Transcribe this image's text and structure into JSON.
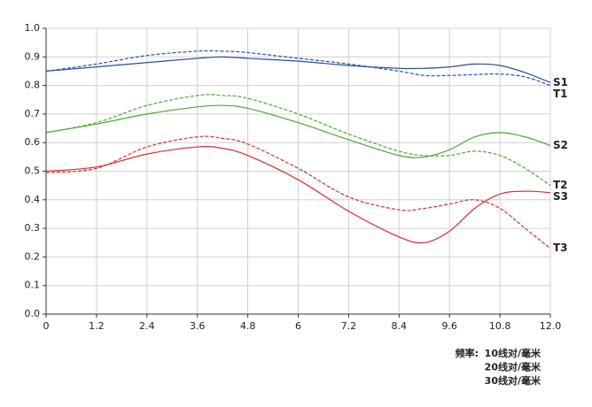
{
  "chart_data": {
    "type": "line",
    "x": [
      0,
      1.2,
      2.4,
      3.6,
      4.2,
      4.8,
      6,
      7.2,
      8.4,
      9,
      9.6,
      10.2,
      10.8,
      11.4,
      12
    ],
    "series": [
      {
        "name": "S1",
        "color": "#2a4e9a",
        "style": "solid",
        "values": [
          0.85,
          0.865,
          0.88,
          0.895,
          0.9,
          0.895,
          0.885,
          0.87,
          0.86,
          0.86,
          0.865,
          0.875,
          0.87,
          0.845,
          0.81
        ]
      },
      {
        "name": "T1",
        "color": "#2a4e9a",
        "style": "dashed",
        "values": [
          0.85,
          0.875,
          0.905,
          0.92,
          0.92,
          0.915,
          0.895,
          0.875,
          0.85,
          0.835,
          0.835,
          0.838,
          0.84,
          0.83,
          0.8
        ]
      },
      {
        "name": "S2",
        "color": "#4aa832",
        "style": "solid",
        "values": [
          0.635,
          0.665,
          0.7,
          0.725,
          0.73,
          0.72,
          0.67,
          0.61,
          0.555,
          0.55,
          0.575,
          0.62,
          0.635,
          0.62,
          0.59
        ]
      },
      {
        "name": "T2",
        "color": "#4aa832",
        "style": "dashed",
        "values": [
          0.635,
          0.67,
          0.73,
          0.765,
          0.765,
          0.755,
          0.7,
          0.63,
          0.57,
          0.555,
          0.555,
          0.57,
          0.555,
          0.51,
          0.45
        ]
      },
      {
        "name": "S3",
        "color": "#d92b2b",
        "style": "solid",
        "values": [
          0.5,
          0.515,
          0.56,
          0.585,
          0.58,
          0.555,
          0.47,
          0.36,
          0.27,
          0.25,
          0.29,
          0.37,
          0.42,
          0.43,
          0.425
        ]
      },
      {
        "name": "T3",
        "color": "#d92b2b",
        "style": "dashed",
        "values": [
          0.495,
          0.51,
          0.585,
          0.62,
          0.615,
          0.595,
          0.51,
          0.41,
          0.365,
          0.37,
          0.385,
          0.4,
          0.37,
          0.3,
          0.23
        ]
      }
    ],
    "xlim": [
      0,
      12
    ],
    "xticks": [
      0,
      1.2,
      2.4,
      3.6,
      4.8,
      6,
      7.2,
      8.4,
      9.6,
      10.8,
      {
        "value": 12,
        "label": "12.0"
      }
    ],
    "ylim": [
      0,
      1
    ],
    "yticks": [
      {
        "value": 0,
        "label": "0.0"
      },
      0.1,
      0.2,
      0.3,
      0.4,
      0.5,
      0.6,
      0.7,
      0.8,
      0.9,
      {
        "value": 1,
        "label": "1.0"
      }
    ],
    "grid": true,
    "legend": {
      "title": "频率:",
      "items": [
        {
          "label": "10线对/毫米",
          "color": "#2a4e9a"
        },
        {
          "label": "20线对/毫米",
          "color": "#4aa832"
        },
        {
          "label": "30线对/毫米",
          "color": "#d92b2b"
        }
      ]
    }
  }
}
